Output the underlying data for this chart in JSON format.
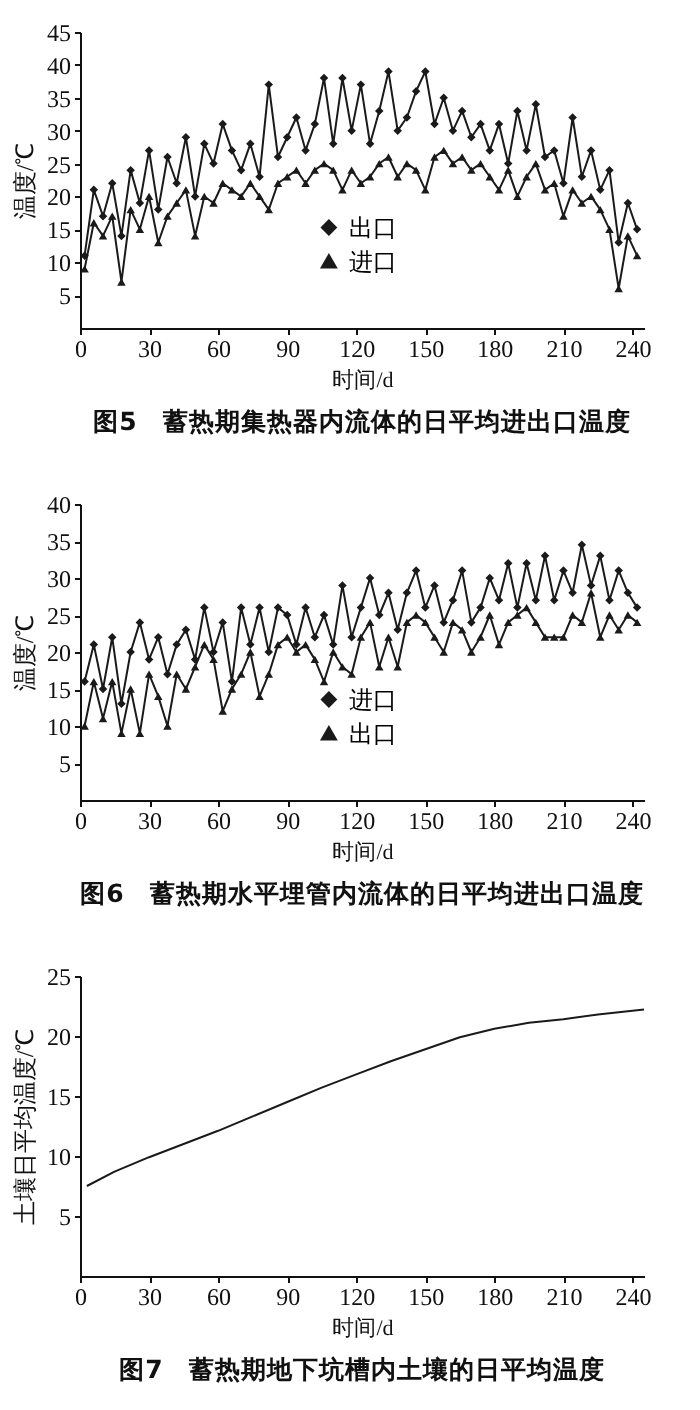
{
  "chart_data": [
    {
      "type": "line",
      "title": "图5　蓄热期集热器内流体的日平均进出口温度",
      "xlabel": "时间/d",
      "ylabel": "温度/℃",
      "xlim": [
        0,
        245
      ],
      "xticks": [
        0,
        30,
        60,
        90,
        120,
        150,
        180,
        210,
        240
      ],
      "ylim": [
        0,
        45
      ],
      "yticks": [
        5,
        10,
        15,
        20,
        25,
        30,
        35,
        40,
        45
      ],
      "grid": false,
      "legend": "bottom",
      "x": [
        2,
        6,
        10,
        14,
        18,
        22,
        26,
        30,
        34,
        38,
        42,
        46,
        50,
        54,
        58,
        62,
        66,
        70,
        74,
        78,
        82,
        86,
        90,
        94,
        98,
        102,
        106,
        110,
        114,
        118,
        122,
        126,
        130,
        134,
        138,
        142,
        146,
        150,
        154,
        158,
        162,
        166,
        170,
        174,
        178,
        182,
        186,
        190,
        194,
        198,
        202,
        206,
        210,
        214,
        218,
        222,
        226,
        230,
        234,
        238,
        242
      ],
      "series": [
        {
          "name": "出口",
          "color": "#1a1a1a",
          "marker": "diamond",
          "values": [
            11,
            21,
            17,
            22,
            14,
            24,
            19,
            27,
            18,
            26,
            22,
            29,
            20,
            28,
            25,
            31,
            27,
            24,
            28,
            23,
            37,
            26,
            29,
            32,
            27,
            31,
            38,
            28,
            38,
            30,
            37,
            28,
            33,
            39,
            30,
            32,
            36,
            39,
            31,
            35,
            30,
            33,
            29,
            31,
            27,
            31,
            25,
            33,
            27,
            34,
            26,
            27,
            22,
            32,
            23,
            27,
            21,
            24,
            13,
            19,
            15
          ]
        },
        {
          "name": "进口",
          "color": "#1a1a1a",
          "marker": "triangle",
          "values": [
            9,
            16,
            14,
            17,
            7,
            18,
            15,
            20,
            13,
            17,
            19,
            21,
            14,
            20,
            19,
            22,
            21,
            20,
            22,
            20,
            18,
            22,
            23,
            24,
            22,
            24,
            25,
            24,
            21,
            24,
            22,
            23,
            25,
            26,
            23,
            25,
            24,
            21,
            26,
            27,
            25,
            26,
            24,
            25,
            23,
            21,
            24,
            20,
            23,
            25,
            21,
            22,
            17,
            21,
            19,
            20,
            18,
            15,
            6,
            14,
            11
          ]
        }
      ]
    },
    {
      "type": "line",
      "title": "图6　蓄热期水平埋管内流体的日平均进出口温度",
      "xlabel": "时间/d",
      "ylabel": "温度/℃",
      "xlim": [
        0,
        245
      ],
      "xticks": [
        0,
        30,
        60,
        90,
        120,
        150,
        180,
        210,
        240
      ],
      "ylim": [
        0,
        40
      ],
      "yticks": [
        5,
        10,
        15,
        20,
        25,
        30,
        35,
        40
      ],
      "grid": false,
      "legend": "bottom",
      "x": [
        2,
        6,
        10,
        14,
        18,
        22,
        26,
        30,
        34,
        38,
        42,
        46,
        50,
        54,
        58,
        62,
        66,
        70,
        74,
        78,
        82,
        86,
        90,
        94,
        98,
        102,
        106,
        110,
        114,
        118,
        122,
        126,
        130,
        134,
        138,
        142,
        146,
        150,
        154,
        158,
        162,
        166,
        170,
        174,
        178,
        182,
        186,
        190,
        194,
        198,
        202,
        206,
        210,
        214,
        218,
        222,
        226,
        230,
        234,
        238,
        242
      ],
      "series": [
        {
          "name": "进口",
          "color": "#1a1a1a",
          "marker": "diamond",
          "values": [
            16,
            21,
            15,
            22,
            13,
            20,
            24,
            19,
            22,
            17,
            21,
            23,
            19,
            26,
            20,
            24,
            16,
            26,
            21,
            26,
            20,
            26,
            25,
            21,
            26,
            22,
            25,
            21,
            29,
            22,
            26,
            30,
            25,
            28,
            23,
            28,
            31,
            26,
            29,
            24,
            27,
            31,
            24,
            26,
            30,
            27,
            32,
            26,
            32,
            27,
            33,
            27,
            31,
            28,
            34.5,
            29,
            33,
            27,
            31,
            28,
            26
          ]
        },
        {
          "name": "出口",
          "color": "#1a1a1a",
          "marker": "triangle",
          "values": [
            10,
            16,
            11,
            16,
            9,
            15,
            9,
            17,
            14,
            10,
            17,
            15,
            18,
            21,
            19,
            12,
            15,
            17,
            20,
            14,
            17,
            21,
            22,
            20,
            21,
            19,
            16,
            20,
            18,
            17,
            22,
            24,
            18,
            22,
            18,
            24,
            25,
            24,
            22,
            20,
            24,
            23,
            20,
            22,
            25,
            21,
            24,
            25,
            26,
            24,
            22,
            22,
            22,
            25,
            24,
            28,
            22,
            25,
            23,
            25,
            24
          ]
        }
      ]
    },
    {
      "type": "line",
      "title": "图7　蓄热期地下坑槽内土壤的日平均温度",
      "xlabel": "时间/d",
      "ylabel": "土壤日平均温度/℃",
      "xlim": [
        0,
        245
      ],
      "xticks": [
        0,
        30,
        60,
        90,
        120,
        150,
        180,
        210,
        240
      ],
      "ylim": [
        0,
        25
      ],
      "yticks": [
        5,
        10,
        15,
        20,
        25
      ],
      "grid": false,
      "legend": false,
      "x": [
        3,
        15,
        30,
        45,
        60,
        75,
        90,
        105,
        120,
        135,
        150,
        165,
        180,
        195,
        210,
        225,
        245
      ],
      "series": [
        {
          "color": "#1a1a1a",
          "marker": "none",
          "values": [
            7.5,
            8.7,
            9.9,
            11,
            12.1,
            13.3,
            14.5,
            15.7,
            16.8,
            17.9,
            18.9,
            19.9,
            20.6,
            21.1,
            21.4,
            21.8,
            22.2
          ]
        }
      ]
    }
  ]
}
